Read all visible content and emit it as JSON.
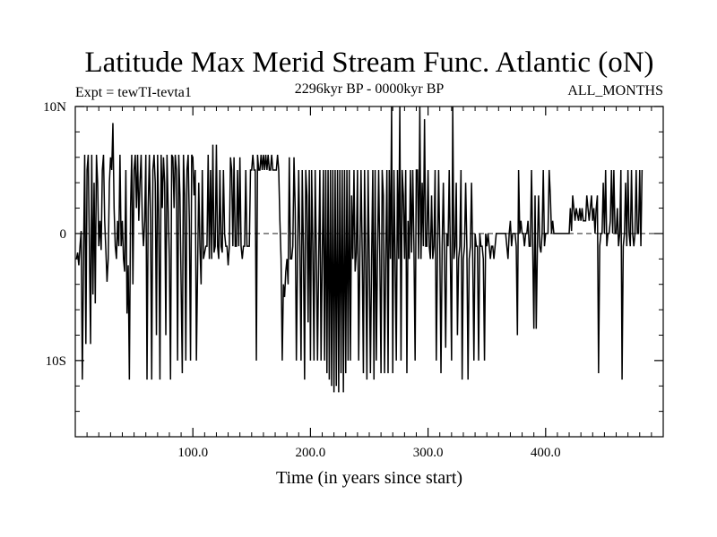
{
  "chart_data": {
    "type": "line",
    "title": "Latitude Max Merid Stream Func. Atlantic (oN)",
    "subtitle_left": "Expt = tewTI-tevta1",
    "subtitle_center": "2296kyr BP - 0000kyr BP",
    "subtitle_right": "ALL_MONTHS",
    "xlabel": "Time (in years since start)",
    "ylabel": "",
    "xlim": [
      0,
      500
    ],
    "ylim": [
      -16,
      10
    ],
    "x_ticks": [
      {
        "value": 100,
        "label": "100.0"
      },
      {
        "value": 200,
        "label": "200.0"
      },
      {
        "value": 300,
        "label": "300.0"
      },
      {
        "value": 400,
        "label": "400.0"
      }
    ],
    "y_ticks": [
      {
        "value": 10,
        "label": "10N"
      },
      {
        "value": 0,
        "label": "0"
      },
      {
        "value": -10,
        "label": "10S"
      }
    ],
    "zero_line": true,
    "series": [
      {
        "name": "latitude_max_stream_function",
        "x_start": 1,
        "x_step": 1,
        "values": [
          -2,
          -1.5,
          -2.5,
          -1,
          0.2,
          -11.5,
          -2,
          6.2,
          -8.7,
          5,
          6.2,
          -1,
          -8.7,
          6.2,
          -4.8,
          4,
          -5.5,
          6.2,
          4,
          -1,
          1,
          -1.3,
          5,
          6.2,
          1,
          -1.3,
          -3.8,
          -2,
          4,
          6,
          5,
          8.7,
          2,
          -1,
          -2,
          1,
          -1,
          6.2,
          -1,
          1,
          -2,
          -3,
          5,
          -6.3,
          -2.5,
          -11.5,
          2,
          6.2,
          -4,
          5,
          6.2,
          2,
          6.2,
          1,
          4,
          6.2,
          1,
          -1,
          1,
          6.2,
          -11.5,
          2,
          6.2,
          1,
          -11.5,
          5,
          6.2,
          4,
          -8,
          6.2,
          1,
          -11.5,
          6.2,
          2,
          6,
          4,
          -8,
          6.2,
          2,
          -2,
          -11.5,
          6.2,
          6,
          2,
          6.2,
          5,
          -10,
          6.2,
          3,
          -4,
          -11,
          6.2,
          3,
          -10,
          5,
          6.2,
          1,
          -10,
          6.2,
          6,
          3,
          5,
          -10,
          -3,
          4,
          -1,
          -4,
          5,
          -2,
          -1.5,
          -1,
          -1,
          6.2,
          -2,
          5,
          -2,
          7,
          -1.5,
          -1,
          7,
          -1,
          -2,
          5,
          -1,
          -1.5,
          5,
          0,
          -1,
          -1,
          -2.5,
          -1,
          6,
          5,
          -1,
          6,
          -1,
          -1,
          5,
          -1,
          6,
          -1,
          -2,
          -1,
          -1,
          5,
          -1,
          -1,
          -1,
          5,
          5,
          6.2,
          5,
          5,
          -10,
          6.2,
          5,
          5,
          6.2,
          5,
          6.2,
          5,
          6.2,
          5,
          6.2,
          5,
          5,
          6.2,
          5,
          5,
          5,
          5,
          6.2,
          5,
          1,
          -2,
          -10,
          -4,
          -5,
          -3,
          -2,
          -4,
          6,
          -2,
          -2,
          -1,
          6,
          2,
          -10,
          -2,
          5,
          -1,
          -10,
          5,
          -1,
          -11.5,
          5,
          3,
          -7,
          5,
          -10,
          5,
          -1,
          -10,
          5,
          -1.5,
          -10,
          -2,
          5,
          -10,
          -2,
          5,
          -10,
          5,
          -11,
          5,
          -11.5,
          5,
          -12,
          5,
          -12.5,
          5,
          -12,
          5,
          -12.5,
          5,
          -11,
          5,
          -12.5,
          5,
          -11,
          5,
          -10,
          5,
          -10,
          3,
          -2,
          5,
          -3,
          -1.5,
          5,
          -10,
          -2,
          5,
          -1.5,
          -11,
          5,
          -2,
          -11.5,
          5,
          -2,
          -11,
          -2,
          5,
          -11.5,
          5,
          -10,
          -2,
          5,
          -2,
          -11,
          5,
          3,
          -11,
          -2,
          5,
          -11,
          5,
          -2,
          10,
          -11,
          5,
          -2,
          -10,
          5,
          -2,
          10,
          -10,
          5,
          3,
          -2,
          5,
          -11,
          1,
          -2,
          5,
          -1.5,
          5,
          -1,
          -10,
          5,
          5,
          -2,
          10,
          -2,
          4,
          -1,
          9,
          -1,
          -1,
          5,
          -1,
          -2,
          3,
          -2,
          -1,
          5,
          -10,
          -2,
          5,
          -1,
          -11,
          -1,
          4,
          -2,
          -9,
          0,
          -1,
          5,
          -2,
          -10,
          10,
          -2,
          -1,
          4,
          -8,
          -2,
          -1,
          5,
          -11.5,
          -2,
          -1,
          4,
          -1,
          -11.5,
          -2,
          -1,
          4,
          -2,
          -10,
          0,
          -1,
          -1,
          -10,
          0,
          -1,
          -1,
          -2,
          -10,
          0,
          -1,
          0,
          -1,
          -2,
          -1,
          -1,
          -2,
          -1,
          0,
          0,
          0,
          0,
          0,
          0,
          0,
          0,
          0,
          -1,
          -2,
          0,
          1,
          -1,
          0,
          0,
          0,
          -1,
          -8,
          5,
          0,
          1,
          0,
          0,
          -1,
          0,
          0,
          1,
          -1,
          -1,
          5,
          -1,
          -7.5,
          3,
          -7.5,
          -1,
          3,
          -1,
          -1.5,
          0,
          5,
          -1,
          0,
          0,
          0,
          5,
          3,
          0,
          1,
          0,
          0,
          0,
          0,
          0,
          0,
          0,
          0,
          0,
          0,
          0,
          0,
          0,
          0,
          2,
          0.2,
          3,
          2,
          1,
          2,
          1.5,
          1,
          2,
          1,
          2,
          1,
          1,
          1,
          3,
          2,
          1,
          2,
          3,
          1,
          2,
          0,
          2,
          3,
          -11,
          -1,
          0,
          0,
          4,
          0,
          5,
          -1,
          0,
          0,
          1,
          5,
          0,
          5,
          0,
          0,
          2,
          -1,
          0,
          5,
          -11.5,
          -1,
          0,
          4,
          -1,
          5,
          0,
          -1,
          5,
          0,
          -1,
          0,
          5,
          0,
          0,
          5,
          -1,
          5
        ]
      }
    ]
  }
}
